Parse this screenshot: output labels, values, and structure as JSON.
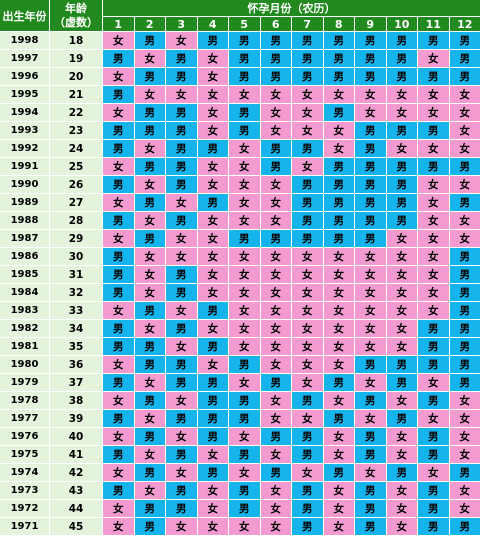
{
  "header": {
    "birth_year": "出生年份",
    "age_line1": "年龄",
    "age_line2": "（虚数）",
    "months_title": "怀孕月份（农历）",
    "months": [
      "1",
      "2",
      "3",
      "4",
      "5",
      "6",
      "7",
      "8",
      "9",
      "10",
      "11",
      "12"
    ]
  },
  "colors": {
    "male": "#16b4ec",
    "female": "#f39ad0",
    "header": "#21891e",
    "label_bg": "#e4f3dc"
  },
  "rows": [
    {
      "year": "1998",
      "age": "18",
      "g": [
        "女",
        "男",
        "女",
        "男",
        "男",
        "男",
        "男",
        "男",
        "男",
        "男",
        "男",
        "男"
      ]
    },
    {
      "year": "1997",
      "age": "19",
      "g": [
        "男",
        "女",
        "男",
        "女",
        "男",
        "男",
        "男",
        "男",
        "男",
        "男",
        "女",
        "男"
      ]
    },
    {
      "year": "1996",
      "age": "20",
      "g": [
        "女",
        "男",
        "男",
        "女",
        "男",
        "男",
        "男",
        "男",
        "男",
        "男",
        "男",
        "男"
      ]
    },
    {
      "year": "1995",
      "age": "21",
      "g": [
        "男",
        "女",
        "女",
        "女",
        "女",
        "女",
        "女",
        "女",
        "女",
        "女",
        "女",
        "女"
      ]
    },
    {
      "year": "1994",
      "age": "22",
      "g": [
        "女",
        "男",
        "男",
        "女",
        "男",
        "女",
        "女",
        "男",
        "女",
        "女",
        "女",
        "女"
      ]
    },
    {
      "year": "1993",
      "age": "23",
      "g": [
        "男",
        "男",
        "男",
        "女",
        "男",
        "女",
        "女",
        "女",
        "男",
        "男",
        "男",
        "女"
      ]
    },
    {
      "year": "1992",
      "age": "24",
      "g": [
        "男",
        "女",
        "男",
        "男",
        "女",
        "男",
        "男",
        "女",
        "男",
        "女",
        "女",
        "女"
      ]
    },
    {
      "year": "1991",
      "age": "25",
      "g": [
        "女",
        "男",
        "男",
        "女",
        "女",
        "男",
        "女",
        "男",
        "男",
        "男",
        "男",
        "男"
      ]
    },
    {
      "year": "1990",
      "age": "26",
      "g": [
        "男",
        "女",
        "男",
        "女",
        "女",
        "女",
        "男",
        "男",
        "男",
        "男",
        "女",
        "女"
      ]
    },
    {
      "year": "1989",
      "age": "27",
      "g": [
        "女",
        "男",
        "女",
        "男",
        "女",
        "女",
        "男",
        "男",
        "男",
        "男",
        "女",
        "男"
      ]
    },
    {
      "year": "1988",
      "age": "28",
      "g": [
        "男",
        "女",
        "男",
        "女",
        "女",
        "女",
        "男",
        "男",
        "男",
        "男",
        "女",
        "女"
      ]
    },
    {
      "year": "1987",
      "age": "29",
      "g": [
        "女",
        "男",
        "女",
        "女",
        "男",
        "男",
        "男",
        "男",
        "男",
        "女",
        "女",
        "女"
      ]
    },
    {
      "year": "1986",
      "age": "30",
      "g": [
        "男",
        "女",
        "女",
        "女",
        "女",
        "女",
        "女",
        "女",
        "女",
        "女",
        "女",
        "男"
      ]
    },
    {
      "year": "1985",
      "age": "31",
      "g": [
        "男",
        "女",
        "男",
        "女",
        "女",
        "女",
        "女",
        "女",
        "女",
        "女",
        "女",
        "男"
      ]
    },
    {
      "year": "1984",
      "age": "32",
      "g": [
        "男",
        "女",
        "男",
        "女",
        "女",
        "女",
        "女",
        "女",
        "女",
        "女",
        "女",
        "男"
      ]
    },
    {
      "year": "1983",
      "age": "33",
      "g": [
        "女",
        "男",
        "女",
        "男",
        "女",
        "女",
        "女",
        "女",
        "女",
        "女",
        "女",
        "男"
      ]
    },
    {
      "year": "1982",
      "age": "34",
      "g": [
        "男",
        "女",
        "男",
        "女",
        "女",
        "女",
        "女",
        "女",
        "女",
        "女",
        "男",
        "男"
      ]
    },
    {
      "year": "1981",
      "age": "35",
      "g": [
        "男",
        "男",
        "女",
        "男",
        "女",
        "女",
        "女",
        "女",
        "女",
        "女",
        "男",
        "男"
      ]
    },
    {
      "year": "1980",
      "age": "36",
      "g": [
        "女",
        "男",
        "男",
        "女",
        "男",
        "女",
        "女",
        "女",
        "男",
        "男",
        "男",
        "男"
      ]
    },
    {
      "year": "1979",
      "age": "37",
      "g": [
        "男",
        "女",
        "男",
        "男",
        "女",
        "男",
        "女",
        "男",
        "女",
        "男",
        "女",
        "男"
      ]
    },
    {
      "year": "1978",
      "age": "38",
      "g": [
        "女",
        "男",
        "女",
        "男",
        "男",
        "女",
        "男",
        "女",
        "男",
        "女",
        "男",
        "女"
      ]
    },
    {
      "year": "1977",
      "age": "39",
      "g": [
        "男",
        "女",
        "男",
        "男",
        "男",
        "女",
        "女",
        "男",
        "女",
        "男",
        "女",
        "女"
      ]
    },
    {
      "year": "1976",
      "age": "40",
      "g": [
        "女",
        "男",
        "女",
        "男",
        "女",
        "男",
        "男",
        "女",
        "男",
        "女",
        "男",
        "女"
      ]
    },
    {
      "year": "1975",
      "age": "41",
      "g": [
        "男",
        "女",
        "男",
        "女",
        "男",
        "女",
        "男",
        "女",
        "男",
        "女",
        "男",
        "女"
      ]
    },
    {
      "year": "1974",
      "age": "42",
      "g": [
        "女",
        "男",
        "女",
        "男",
        "女",
        "男",
        "女",
        "男",
        "女",
        "男",
        "女",
        "男"
      ]
    },
    {
      "year": "1973",
      "age": "43",
      "g": [
        "男",
        "女",
        "男",
        "女",
        "男",
        "女",
        "男",
        "女",
        "男",
        "女",
        "男",
        "女"
      ]
    },
    {
      "year": "1972",
      "age": "44",
      "g": [
        "女",
        "男",
        "男",
        "女",
        "男",
        "女",
        "男",
        "女",
        "男",
        "女",
        "男",
        "女"
      ]
    },
    {
      "year": "1971",
      "age": "45",
      "g": [
        "女",
        "男",
        "女",
        "女",
        "女",
        "女",
        "男",
        "女",
        "男",
        "女",
        "男",
        "男"
      ]
    }
  ]
}
